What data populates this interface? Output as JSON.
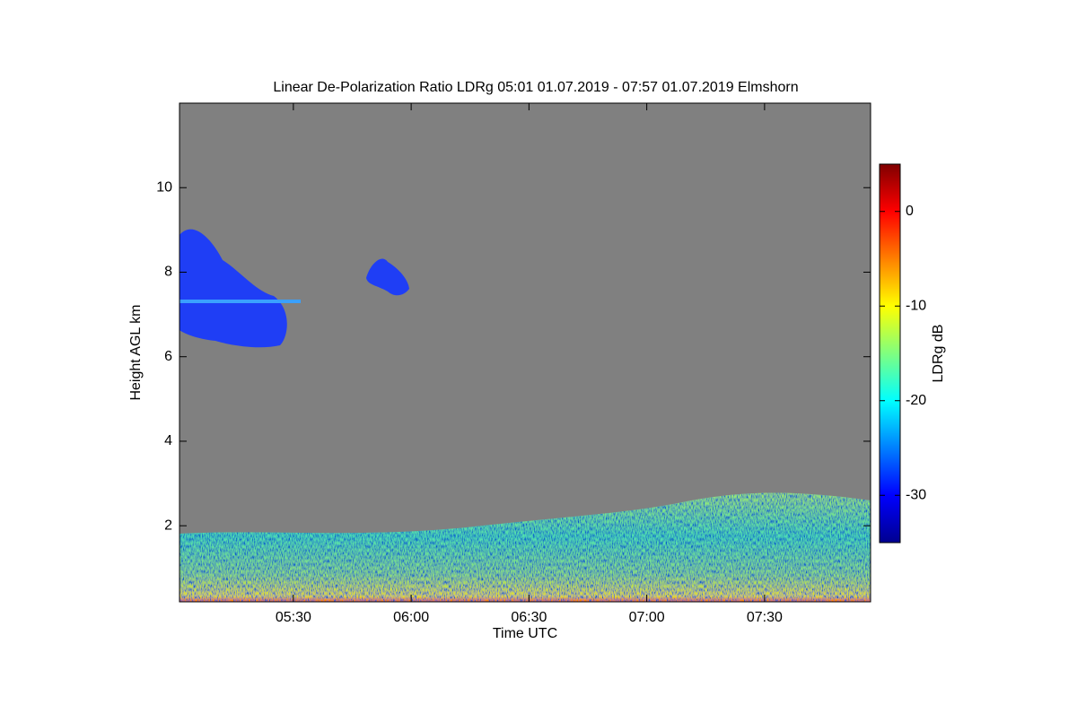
{
  "chart_data": {
    "type": "heatmap",
    "title": "Linear De-Polarization Ratio LDRg   05:01 01.07.2019 - 07:57 01.07.2019 Elmshorn",
    "x_label": "Time UTC",
    "y_label": "Height AGL km",
    "colorbar_label": "LDRg dB",
    "xlim": [
      301,
      477
    ],
    "xticks": [
      {
        "value": 330,
        "label": "05:30"
      },
      {
        "value": 360,
        "label": "06:00"
      },
      {
        "value": 390,
        "label": "06:30"
      },
      {
        "value": 420,
        "label": "07:00"
      },
      {
        "value": 450,
        "label": "07:30"
      }
    ],
    "ylim": [
      0.2,
      12
    ],
    "yticks": [
      2,
      4,
      6,
      8,
      10
    ],
    "clim": [
      -35,
      5
    ],
    "cticks": [
      -30,
      -20,
      -10,
      0
    ],
    "colormap": "jet",
    "background": "#808080"
  }
}
